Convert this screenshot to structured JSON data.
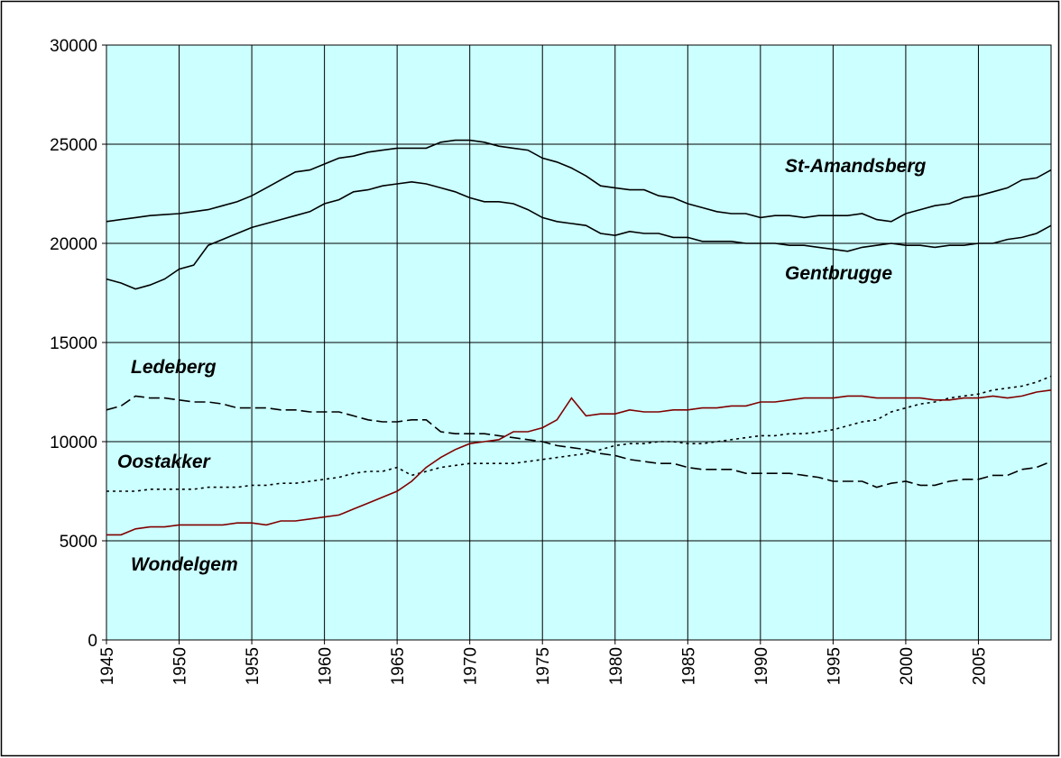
{
  "chart_data": {
    "type": "line",
    "x": [
      1945,
      1946,
      1947,
      1948,
      1949,
      1950,
      1951,
      1952,
      1953,
      1954,
      1955,
      1956,
      1957,
      1958,
      1959,
      1960,
      1961,
      1962,
      1963,
      1964,
      1965,
      1966,
      1967,
      1968,
      1969,
      1970,
      1971,
      1972,
      1973,
      1974,
      1975,
      1976,
      1977,
      1978,
      1979,
      1980,
      1981,
      1982,
      1983,
      1984,
      1985,
      1986,
      1987,
      1988,
      1989,
      1990,
      1991,
      1992,
      1993,
      1994,
      1995,
      1996,
      1997,
      1998,
      1999,
      2000,
      2001,
      2002,
      2003,
      2004,
      2005,
      2006,
      2007,
      2008,
      2009,
      2010
    ],
    "xlim": [
      1945,
      2010
    ],
    "xticks": [
      1945,
      1950,
      1955,
      1960,
      1965,
      1970,
      1975,
      1980,
      1985,
      1990,
      1995,
      2000,
      2005
    ],
    "ylim": [
      0,
      30000
    ],
    "yticks": [
      0,
      5000,
      10000,
      15000,
      20000,
      25000,
      30000
    ],
    "grid": true,
    "background": "#ccffff",
    "series": [
      {
        "name": "St-Amandsberg",
        "color": "#000000",
        "style": "solid",
        "values": [
          21100,
          21200,
          21300,
          21400,
          21450,
          21500,
          21600,
          21700,
          21900,
          22100,
          22400,
          22800,
          23200,
          23600,
          23700,
          24000,
          24300,
          24400,
          24600,
          24700,
          24800,
          24800,
          24800,
          25100,
          25200,
          25200,
          25100,
          24900,
          24800,
          24700,
          24300,
          24100,
          23800,
          23400,
          22900,
          22800,
          22700,
          22700,
          22400,
          22300,
          22000,
          21800,
          21600,
          21500,
          21500,
          21300,
          21400,
          21400,
          21300,
          21400,
          21400,
          21400,
          21500,
          21200,
          21100,
          21500,
          21700,
          21900,
          22000,
          22300,
          22400,
          22600,
          22800,
          23200,
          23300,
          23700
        ]
      },
      {
        "name": "Gentbrugge",
        "color": "#000000",
        "style": "solid",
        "values": [
          18200,
          18000,
          17700,
          17900,
          18200,
          18700,
          18900,
          19900,
          20200,
          20500,
          20800,
          21000,
          21200,
          21400,
          21600,
          22000,
          22200,
          22600,
          22700,
          22900,
          23000,
          23100,
          23000,
          22800,
          22600,
          22300,
          22100,
          22100,
          22000,
          21700,
          21300,
          21100,
          21000,
          20900,
          20500,
          20400,
          20600,
          20500,
          20500,
          20300,
          20300,
          20100,
          20100,
          20100,
          20000,
          20000,
          20000,
          19900,
          19900,
          19800,
          19700,
          19600,
          19800,
          19900,
          20000,
          19900,
          19900,
          19800,
          19900,
          19900,
          20000,
          20000,
          20200,
          20300,
          20500,
          20900
        ]
      },
      {
        "name": "Ledeberg",
        "color": "#000000",
        "style": "dashed",
        "values": [
          11600,
          11800,
          12300,
          12200,
          12200,
          12100,
          12000,
          12000,
          11900,
          11700,
          11700,
          11700,
          11600,
          11600,
          11500,
          11500,
          11500,
          11300,
          11100,
          11000,
          11000,
          11100,
          11100,
          10500,
          10400,
          10400,
          10400,
          10300,
          10200,
          10100,
          10000,
          9800,
          9700,
          9600,
          9400,
          9300,
          9100,
          9000,
          8900,
          8900,
          8700,
          8600,
          8600,
          8600,
          8400,
          8400,
          8400,
          8400,
          8300,
          8200,
          8000,
          8000,
          8000,
          7700,
          7900,
          8000,
          7800,
          7800,
          8000,
          8100,
          8100,
          8300,
          8300,
          8600,
          8700,
          9000
        ]
      },
      {
        "name": "Oostakker",
        "color": "#000000",
        "style": "dotted",
        "values": [
          7500,
          7500,
          7500,
          7600,
          7600,
          7600,
          7600,
          7700,
          7700,
          7700,
          7800,
          7800,
          7900,
          7900,
          8000,
          8100,
          8200,
          8400,
          8500,
          8500,
          8700,
          8300,
          8500,
          8700,
          8800,
          8900,
          8900,
          8900,
          8900,
          9000,
          9100,
          9200,
          9300,
          9400,
          9600,
          9800,
          9900,
          9900,
          10000,
          10000,
          9900,
          9900,
          10000,
          10100,
          10200,
          10300,
          10300,
          10400,
          10400,
          10500,
          10600,
          10800,
          11000,
          11100,
          11500,
          11700,
          11900,
          12000,
          12200,
          12300,
          12400,
          12600,
          12700,
          12800,
          13000,
          13300
        ]
      },
      {
        "name": "Wondelgem",
        "color": "#800000",
        "style": "solid",
        "values": [
          5300,
          5300,
          5600,
          5700,
          5700,
          5800,
          5800,
          5800,
          5800,
          5900,
          5900,
          5800,
          6000,
          6000,
          6100,
          6200,
          6300,
          6600,
          6900,
          7200,
          7500,
          8000,
          8700,
          9200,
          9600,
          9900,
          10000,
          10100,
          10500,
          10500,
          10700,
          11100,
          12200,
          11300,
          11400,
          11400,
          11600,
          11500,
          11500,
          11600,
          11600,
          11700,
          11700,
          11800,
          11800,
          12000,
          12000,
          12100,
          12200,
          12200,
          12200,
          12300,
          12300,
          12200,
          12200,
          12200,
          12200,
          12100,
          12100,
          12200,
          12200,
          12300,
          12200,
          12300,
          12500,
          12600
        ]
      }
    ]
  }
}
